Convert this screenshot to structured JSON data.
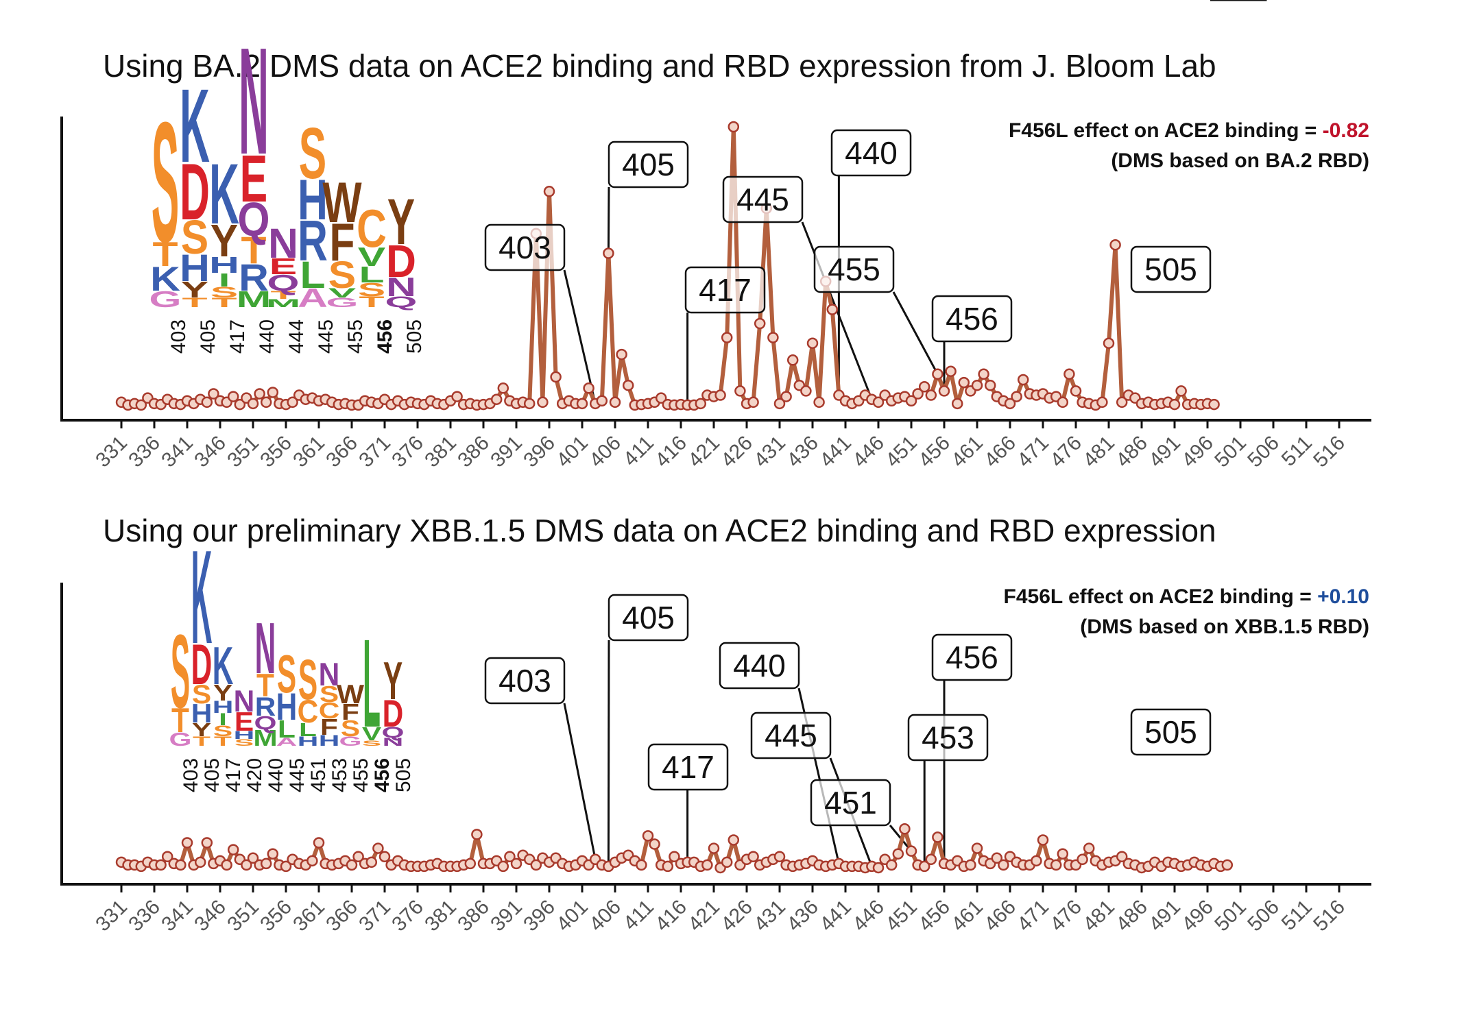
{
  "colors": {
    "line": "#b35f3d",
    "point_stroke": "#a83a2c",
    "point_fill": "#f3d4c8",
    "axis": "#111111",
    "negative": "#c0142c",
    "positive": "#1f4e9c",
    "highlight_label": "#c0142c"
  },
  "aa_colors": {
    "S": "#f28e2b",
    "T": "#f28e2b",
    "G": "#d67dc4",
    "K": "#3b5fb0",
    "H": "#3b5fb0",
    "R": "#3b5fb0",
    "D": "#d9222a",
    "E": "#d9222a",
    "Q": "#8a3d9a",
    "N": "#8a3d9a",
    "Y": "#7a3e12",
    "W": "#7a3e12",
    "F": "#7a3e12",
    "L": "#3fa535",
    "V": "#3fa535",
    "I": "#3fa535",
    "A": "#d67dc4",
    "M": "#3fa535",
    "C": "#f28e2b",
    "P": "#8a3d9a"
  },
  "chart_data": [
    {
      "type": "line",
      "title": "Using BA.2 DMS data on ACE2 binding and RBD expression from J. Bloom Lab",
      "xlabel": "",
      "ylabel": "",
      "x_range": [
        331,
        519
      ],
      "y_range": [
        0,
        1
      ],
      "x_ticks": [
        331,
        336,
        341,
        346,
        351,
        356,
        361,
        366,
        371,
        376,
        381,
        386,
        391,
        396,
        401,
        406,
        411,
        416,
        421,
        426,
        431,
        436,
        441,
        446,
        451,
        456,
        461,
        466,
        471,
        476,
        481,
        486,
        491,
        496,
        501,
        506,
        511,
        516
      ],
      "series": [
        {
          "name": "site score",
          "x_start": 331,
          "values": [
            0.02,
            0.01,
            0.015,
            0.01,
            0.035,
            0.015,
            0.012,
            0.03,
            0.015,
            0.012,
            0.025,
            0.015,
            0.03,
            0.02,
            0.05,
            0.025,
            0.02,
            0.04,
            0.012,
            0.035,
            0.015,
            0.05,
            0.02,
            0.055,
            0.015,
            0.012,
            0.02,
            0.045,
            0.03,
            0.035,
            0.025,
            0.03,
            0.02,
            0.012,
            0.015,
            0.01,
            0.01,
            0.025,
            0.02,
            0.015,
            0.03,
            0.012,
            0.025,
            0.012,
            0.02,
            0.015,
            0.012,
            0.025,
            0.015,
            0.012,
            0.025,
            0.04,
            0.012,
            0.015,
            0.01,
            0.012,
            0.015,
            0.03,
            0.07,
            0.025,
            0.015,
            0.02,
            0.015,
            0.62,
            0.02,
            0.77,
            0.11,
            0.015,
            0.025,
            0.015,
            0.015,
            0.07,
            0.015,
            0.025,
            0.55,
            0.02,
            0.19,
            0.08,
            0.01,
            0.012,
            0.015,
            0.02,
            0.035,
            0.012,
            0.01,
            0.012,
            0.01,
            0.01,
            0.015,
            0.045,
            0.04,
            0.045,
            0.25,
            1.0,
            0.06,
            0.015,
            0.02,
            0.3,
            0.71,
            0.25,
            0.015,
            0.04,
            0.17,
            0.08,
            0.06,
            0.23,
            0.02,
            0.45,
            0.35,
            0.045,
            0.025,
            0.015,
            0.025,
            0.045,
            0.03,
            0.02,
            0.045,
            0.025,
            0.035,
            0.04,
            0.025,
            0.05,
            0.075,
            0.045,
            0.12,
            0.06,
            0.13,
            0.015,
            0.09,
            0.06,
            0.08,
            0.12,
            0.08,
            0.04,
            0.025,
            0.015,
            0.04,
            0.1,
            0.05,
            0.045,
            0.05,
            0.035,
            0.04,
            0.02,
            0.12,
            0.06,
            0.02,
            0.015,
            0.01,
            0.02,
            0.23,
            0.58,
            0.02,
            0.045,
            0.035,
            0.015,
            0.02,
            0.012,
            0.015,
            0.02,
            0.012,
            0.06,
            0.012,
            0.015,
            0.012,
            0.015,
            0.012
          ]
        }
      ],
      "callouts": [
        "403",
        "405",
        "417",
        "440",
        "445",
        "455",
        "456",
        "505"
      ],
      "annotation": {
        "line1": "F456L effect on ACE2 binding = ",
        "value": "-0.82",
        "line2": "(DMS based on BA.2 RBD)"
      },
      "logo": {
        "positions": [
          "403",
          "405",
          "417",
          "440",
          "444",
          "445",
          "455",
          "456",
          "505"
        ],
        "highlight": "456",
        "columns": [
          [
            [
              "G",
              0.12
            ],
            [
              "K",
              0.18
            ],
            [
              "T",
              0.18
            ],
            [
              "S",
              0.9
            ]
          ],
          [
            [
              "T",
              0.07
            ],
            [
              "Y",
              0.12
            ],
            [
              "H",
              0.2
            ],
            [
              "S",
              0.25
            ],
            [
              "D",
              0.42
            ],
            [
              "K",
              0.55
            ]
          ],
          [
            [
              "T",
              0.07
            ],
            [
              "S",
              0.08
            ],
            [
              "I",
              0.1
            ],
            [
              "H",
              0.12
            ],
            [
              "Y",
              0.24
            ],
            [
              "K",
              0.45
            ]
          ],
          [
            [
              "M",
              0.12
            ],
            [
              "R",
              0.2
            ],
            [
              "T",
              0.2
            ],
            [
              "Q",
              0.25
            ],
            [
              "E",
              0.35
            ],
            [
              "N",
              0.8
            ]
          ],
          [
            [
              "M",
              0.06
            ],
            [
              "T",
              0.06
            ],
            [
              "Q",
              0.12
            ],
            [
              "E",
              0.12
            ],
            [
              "N",
              0.22
            ]
          ],
          [
            [
              "A",
              0.14
            ],
            [
              "L",
              0.2
            ],
            [
              "R",
              0.3
            ],
            [
              "H",
              0.3
            ],
            [
              "S",
              0.38
            ]
          ],
          [
            [
              "G",
              0.07
            ],
            [
              "V",
              0.07
            ],
            [
              "S",
              0.2
            ],
            [
              "F",
              0.28
            ],
            [
              "W",
              0.3
            ]
          ],
          [
            [
              "T",
              0.08
            ],
            [
              "S",
              0.1
            ],
            [
              "L",
              0.12
            ],
            [
              "V",
              0.14
            ],
            [
              "C",
              0.28
            ]
          ],
          [
            [
              "Q",
              0.08
            ],
            [
              "N",
              0.14
            ],
            [
              "D",
              0.24
            ],
            [
              "Y",
              0.34
            ]
          ]
        ]
      }
    },
    {
      "type": "line",
      "title": "Using our preliminary XBB.1.5 DMS data on ACE2 binding and RBD expression",
      "xlabel": "",
      "ylabel": "",
      "x_range": [
        331,
        519
      ],
      "y_range": [
        0,
        1
      ],
      "x_ticks": [
        331,
        336,
        341,
        346,
        351,
        356,
        361,
        366,
        371,
        376,
        381,
        386,
        391,
        396,
        401,
        406,
        411,
        416,
        421,
        426,
        431,
        436,
        441,
        446,
        451,
        456,
        461,
        466,
        471,
        476,
        481,
        486,
        491,
        496,
        501,
        506,
        511,
        516
      ],
      "series": [
        {
          "name": "site score",
          "x_start": 331,
          "values": [
            0.03,
            0.02,
            0.02,
            0.015,
            0.03,
            0.02,
            0.02,
            0.05,
            0.025,
            0.02,
            0.1,
            0.02,
            0.03,
            0.1,
            0.025,
            0.035,
            0.02,
            0.075,
            0.04,
            0.02,
            0.045,
            0.02,
            0.025,
            0.06,
            0.02,
            0.015,
            0.04,
            0.025,
            0.02,
            0.035,
            0.1,
            0.025,
            0.02,
            0.025,
            0.035,
            0.02,
            0.05,
            0.025,
            0.03,
            0.08,
            0.05,
            0.02,
            0.035,
            0.02,
            0.015,
            0.015,
            0.015,
            0.02,
            0.025,
            0.015,
            0.015,
            0.015,
            0.02,
            0.025,
            0.13,
            0.025,
            0.025,
            0.035,
            0.015,
            0.05,
            0.025,
            0.055,
            0.04,
            0.02,
            0.045,
            0.03,
            0.045,
            0.025,
            0.015,
            0.02,
            0.035,
            0.02,
            0.04,
            0.02,
            0.015,
            0.03,
            0.045,
            0.055,
            0.035,
            0.02,
            0.125,
            0.095,
            0.02,
            0.015,
            0.05,
            0.025,
            0.03,
            0.03,
            0.015,
            0.02,
            0.08,
            0.01,
            0.03,
            0.11,
            0.02,
            0.04,
            0.05,
            0.02,
            0.03,
            0.04,
            0.05,
            0.02,
            0.015,
            0.02,
            0.025,
            0.035,
            0.02,
            0.015,
            0.02,
            0.025,
            0.015,
            0.015,
            0.015,
            0.01,
            0.015,
            0.01,
            0.04,
            0.02,
            0.06,
            0.15,
            0.07,
            0.02,
            0.015,
            0.04,
            0.12,
            0.025,
            0.02,
            0.035,
            0.015,
            0.02,
            0.08,
            0.035,
            0.025,
            0.045,
            0.02,
            0.05,
            0.03,
            0.02,
            0.02,
            0.035,
            0.11,
            0.025,
            0.02,
            0.06,
            0.02,
            0.02,
            0.04,
            0.08,
            0.035,
            0.02,
            0.03,
            0.035,
            0.05,
            0.025,
            0.02,
            0.01,
            0.015,
            0.03,
            0.015,
            0.03,
            0.025,
            0.015,
            0.02,
            0.03,
            0.02,
            0.015,
            0.025,
            0.015,
            0.02
          ]
        }
      ],
      "callouts": [
        "403",
        "405",
        "417",
        "440",
        "445",
        "451",
        "453",
        "456",
        "505"
      ],
      "annotation": {
        "line1": "F456L effect on ACE2 binding = ",
        "value": "+0.10",
        "line2": "(DMS based on XBB.1.5 RBD)"
      },
      "logo": {
        "positions": [
          "403",
          "405",
          "417",
          "420",
          "440",
          "445",
          "451",
          "453",
          "455",
          "456",
          "505"
        ],
        "highlight": "456",
        "columns": [
          [
            [
              "G",
              0.1
            ],
            [
              "T",
              0.18
            ],
            [
              "S",
              0.55
            ]
          ],
          [
            [
              "T",
              0.07
            ],
            [
              "Y",
              0.1
            ],
            [
              "H",
              0.14
            ],
            [
              "S",
              0.14
            ],
            [
              "D",
              0.3
            ],
            [
              "K",
              0.7
            ]
          ],
          [
            [
              "T",
              0.07
            ],
            [
              "S",
              0.08
            ],
            [
              "I",
              0.09
            ],
            [
              "H",
              0.09
            ],
            [
              "Y",
              0.12
            ],
            [
              "K",
              0.28
            ]
          ],
          [
            [
              "S",
              0.05
            ],
            [
              "H",
              0.06
            ],
            [
              "E",
              0.14
            ],
            [
              "N",
              0.16
            ]
          ],
          [
            [
              "M",
              0.12
            ],
            [
              "Q",
              0.1
            ],
            [
              "R",
              0.14
            ],
            [
              "T",
              0.17
            ],
            [
              "N",
              0.38
            ]
          ],
          [
            [
              "A",
              0.06
            ],
            [
              "L",
              0.13
            ],
            [
              "H",
              0.2
            ],
            [
              "S",
              0.28
            ]
          ],
          [
            [
              "H",
              0.07
            ],
            [
              "L",
              0.1
            ],
            [
              "C",
              0.17
            ],
            [
              "S",
              0.3
            ]
          ],
          [
            [
              "H",
              0.08
            ],
            [
              "F",
              0.12
            ],
            [
              "C",
              0.12
            ],
            [
              "S",
              0.12
            ],
            [
              "N",
              0.17
            ]
          ],
          [
            [
              "G",
              0.07
            ],
            [
              "S",
              0.12
            ],
            [
              "F",
              0.12
            ],
            [
              "W",
              0.14
            ]
          ],
          [
            [
              "S",
              0.04
            ],
            [
              "V",
              0.1
            ],
            [
              "L",
              0.66
            ]
          ],
          [
            [
              "N",
              0.06
            ],
            [
              "Q",
              0.08
            ],
            [
              "D",
              0.2
            ],
            [
              "Y",
              0.28
            ]
          ]
        ]
      }
    }
  ]
}
